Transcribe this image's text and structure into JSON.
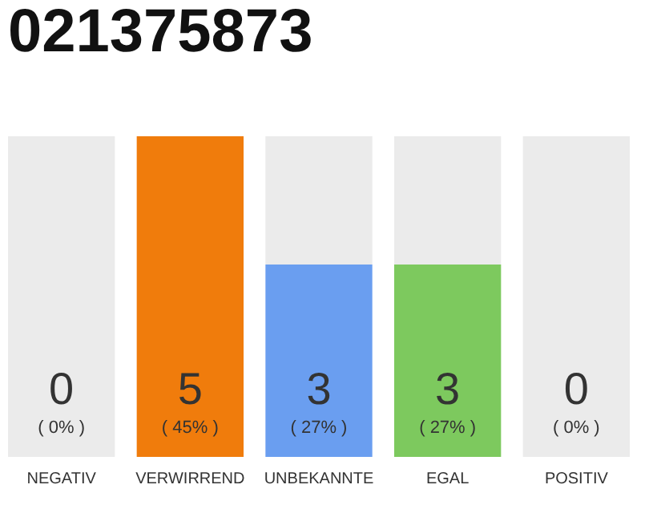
{
  "chart_data": {
    "type": "bar",
    "title": "021375873",
    "stacked": true,
    "categories": [
      "NEGATIV",
      "VERWIRREND",
      "UNBEKANNTE",
      "EGAL",
      "POSITIV"
    ],
    "series": [
      {
        "values": [
          0,
          5,
          3,
          3,
          0
        ],
        "colors": [
          null,
          "#f07c0c",
          "#6a9ef0",
          "#7dc95e",
          null
        ],
        "value_labels": [
          null,
          "5",
          "3",
          "3",
          null
        ]
      },
      {
        "values": [
          5,
          0,
          2,
          2,
          5
        ],
        "color": "#ebebeb"
      }
    ],
    "ylim": [
      0,
      5
    ],
    "tick_labels": "x",
    "annotations": [
      "( 0% )",
      "( 45% )",
      "( 27% )",
      "( 27% )",
      "( 0% )",
      "0",
      "0"
    ]
  }
}
